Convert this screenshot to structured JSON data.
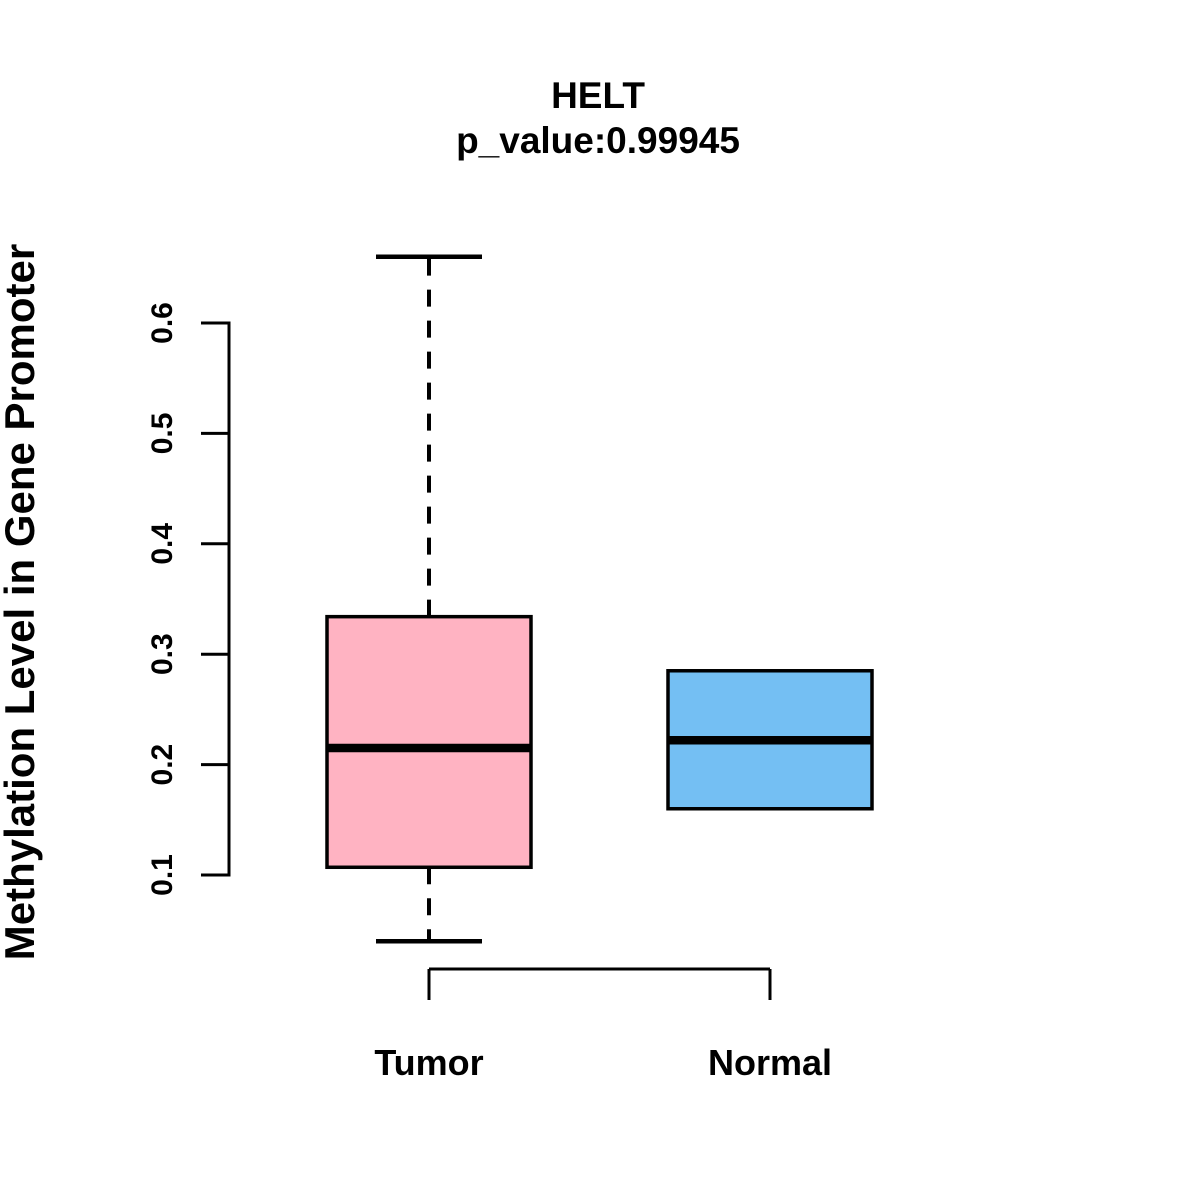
{
  "title": "HELT",
  "subtitle": "p_value:0.99945",
  "colors": {
    "tumor_fill": "#FFB3C2",
    "normal_fill": "#74BFF3",
    "line": "#000000",
    "background": "#FFFFFF"
  },
  "chart_data": {
    "type": "boxplot",
    "title": "HELT",
    "subtitle": "p_value:0.99945",
    "p_value": "0.99945",
    "gene": "HELT",
    "ylabel": "Methylation Level in Gene Promoter",
    "xlabel": "",
    "categories": [
      "Tumor",
      "Normal"
    ],
    "yticks": [
      "0.1",
      "0.2",
      "0.3",
      "0.4",
      "0.5",
      "0.6"
    ],
    "ytick_values": [
      0.1,
      0.2,
      0.3,
      0.4,
      0.5,
      0.6
    ],
    "ylim": [
      0.04,
      0.66
    ],
    "grid": false,
    "legend": false,
    "series": [
      {
        "name": "Tumor",
        "fill": "#FFB3C2",
        "lower_whisker": 0.04,
        "q1": 0.107,
        "median": 0.215,
        "q3": 0.334,
        "upper_whisker": 0.66,
        "whiskers_visible": true,
        "outliers": []
      },
      {
        "name": "Normal",
        "fill": "#74BFF3",
        "lower_whisker": 0.16,
        "q1": 0.16,
        "median": 0.222,
        "q3": 0.285,
        "upper_whisker": 0.285,
        "whiskers_visible": false,
        "outliers": []
      }
    ]
  }
}
